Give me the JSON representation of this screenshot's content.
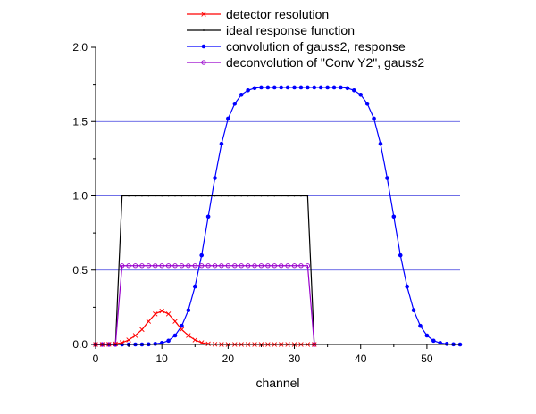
{
  "chart_data": {
    "type": "line",
    "xlabel": "channel",
    "ylabel": "",
    "xlim": [
      0,
      55
    ],
    "ylim": [
      0,
      2.0
    ],
    "x_ticks": [
      0,
      10,
      20,
      30,
      40,
      50
    ],
    "x_tick_labels": [
      "0",
      "10",
      "20",
      "30",
      "40",
      "50"
    ],
    "y_ticks": [
      0,
      0.5,
      1.0,
      1.5,
      2.0
    ],
    "y_tick_labels": [
      "0.0",
      "0.5",
      "1.0",
      "1.5",
      "2.0"
    ],
    "grid": "horizontal at 0.5, 1.0, 1.5",
    "legend_position": "top-center",
    "series": [
      {
        "name": "detector resolution",
        "color": "#ff0000",
        "marker": "x",
        "x": [
          0,
          1,
          2,
          3,
          4,
          5,
          6,
          7,
          8,
          9,
          10,
          11,
          12,
          13,
          14,
          15,
          16,
          17,
          18,
          19,
          20,
          21,
          22,
          23,
          24,
          25,
          26,
          27,
          28,
          29,
          30,
          31,
          32,
          33
        ],
        "y": [
          0,
          0,
          0.001,
          0.004,
          0.012,
          0.03,
          0.06,
          0.1,
          0.155,
          0.205,
          0.225,
          0.205,
          0.155,
          0.1,
          0.06,
          0.03,
          0.012,
          0.004,
          0.001,
          0,
          0,
          0,
          0,
          0,
          0,
          0,
          0,
          0,
          0,
          0,
          0,
          0,
          0,
          0
        ]
      },
      {
        "name": "ideal response function",
        "color": "#000000",
        "marker": "dot",
        "x": [
          0,
          1,
          2,
          3,
          4,
          5,
          6,
          7,
          8,
          9,
          10,
          11,
          12,
          13,
          14,
          15,
          16,
          17,
          18,
          19,
          20,
          21,
          22,
          23,
          24,
          25,
          26,
          27,
          28,
          29,
          30,
          31,
          32,
          33
        ],
        "y": [
          0,
          0,
          0,
          0,
          1,
          1,
          1,
          1,
          1,
          1,
          1,
          1,
          1,
          1,
          1,
          1,
          1,
          1,
          1,
          1,
          1,
          1,
          1,
          1,
          1,
          1,
          1,
          1,
          1,
          1,
          1,
          1,
          1,
          0
        ]
      },
      {
        "name": "convolution of gauss2, response",
        "color": "#0000ff",
        "marker": "filled-circle",
        "x": [
          0,
          1,
          2,
          3,
          4,
          5,
          6,
          7,
          8,
          9,
          10,
          11,
          12,
          13,
          14,
          15,
          16,
          17,
          18,
          19,
          20,
          21,
          22,
          23,
          24,
          25,
          26,
          27,
          28,
          29,
          30,
          31,
          32,
          33,
          34,
          35,
          36,
          37,
          38,
          39,
          40,
          41,
          42,
          43,
          44,
          45,
          46,
          47,
          48,
          49,
          50,
          51,
          52,
          53,
          54,
          55
        ],
        "y": [
          0,
          0,
          0,
          0,
          0,
          0,
          0,
          0,
          0.001,
          0.004,
          0.01,
          0.025,
          0.06,
          0.125,
          0.23,
          0.39,
          0.6,
          0.86,
          1.12,
          1.35,
          1.52,
          1.62,
          1.68,
          1.71,
          1.725,
          1.73,
          1.73,
          1.73,
          1.73,
          1.73,
          1.73,
          1.73,
          1.73,
          1.73,
          1.73,
          1.73,
          1.73,
          1.73,
          1.725,
          1.71,
          1.68,
          1.62,
          1.52,
          1.35,
          1.12,
          0.86,
          0.6,
          0.39,
          0.23,
          0.125,
          0.06,
          0.025,
          0.01,
          0.004,
          0.001,
          0
        ]
      },
      {
        "name": "deconvolution of \"Conv Y2\", gauss2",
        "color": "#9900cc",
        "marker": "open-circle",
        "x": [
          0,
          1,
          2,
          3,
          4,
          5,
          6,
          7,
          8,
          9,
          10,
          11,
          12,
          13,
          14,
          15,
          16,
          17,
          18,
          19,
          20,
          21,
          22,
          23,
          24,
          25,
          26,
          27,
          28,
          29,
          30,
          31,
          32,
          33
        ],
        "y": [
          0,
          0,
          0,
          0,
          0.53,
          0.53,
          0.53,
          0.53,
          0.53,
          0.53,
          0.53,
          0.53,
          0.53,
          0.53,
          0.53,
          0.53,
          0.53,
          0.53,
          0.53,
          0.53,
          0.53,
          0.53,
          0.53,
          0.53,
          0.53,
          0.53,
          0.53,
          0.53,
          0.53,
          0.53,
          0.53,
          0.53,
          0.53,
          0
        ]
      }
    ]
  }
}
